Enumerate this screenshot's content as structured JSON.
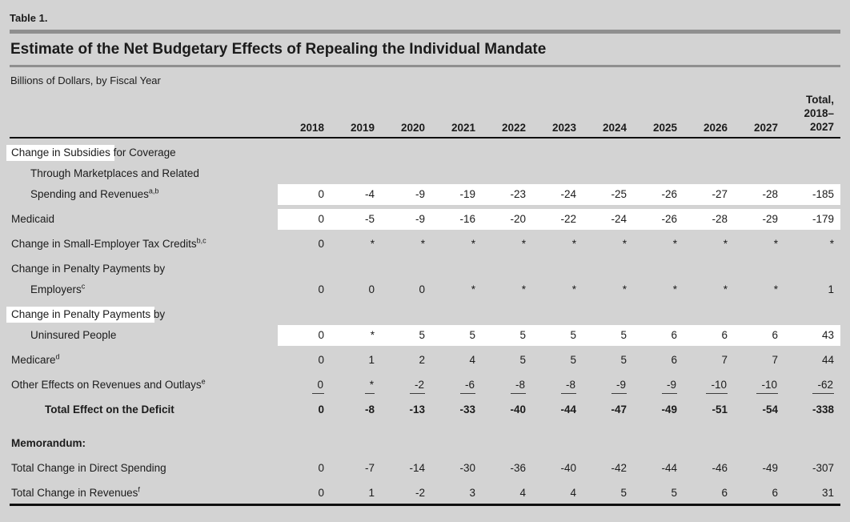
{
  "page": {
    "table_number": "Table 1.",
    "title": "Estimate of the Net Budgetary Effects of Repealing the Individual Mandate",
    "subtitle": "Billions of Dollars, by Fiscal Year"
  },
  "colors": {
    "background": "#d3d3d3",
    "text": "#1b1b1b",
    "rule_gray": "#8f8f8f",
    "rule_black": "#0f0f0f",
    "highlight": "#ffffff"
  },
  "table": {
    "year_headers": [
      "2018",
      "2019",
      "2020",
      "2021",
      "2022",
      "2023",
      "2024",
      "2025",
      "2026",
      "2027"
    ],
    "total_header_lines": [
      "Total,",
      "2018–",
      "2027"
    ],
    "rows": [
      {
        "lines": [
          {
            "indent": 0,
            "segments": [
              {
                "t": "Change in Subsidies",
                "hl": true
              },
              {
                "t": " for Coverage"
              }
            ]
          },
          {
            "indent": 1,
            "segments": [
              {
                "t": "Through Marketplaces and Related"
              }
            ]
          },
          {
            "indent": 1,
            "segments": [
              {
                "t": "Spending and Revenues"
              }
            ],
            "sup": "a,b"
          }
        ],
        "values": [
          "0",
          "-4",
          "-9",
          "-19",
          "-23",
          "-24",
          "-25",
          "-26",
          "-27",
          "-28",
          "-185"
        ],
        "values_hl": true
      },
      {
        "lines": [
          {
            "indent": 0,
            "segments": [
              {
                "t": "Medicaid"
              }
            ]
          }
        ],
        "values": [
          "0",
          "-5",
          "-9",
          "-16",
          "-20",
          "-22",
          "-24",
          "-26",
          "-28",
          "-29",
          "-179"
        ],
        "values_hl": true
      },
      {
        "lines": [
          {
            "indent": 0,
            "segments": [
              {
                "t": "Change in Small-Employer Tax Credits"
              }
            ],
            "sup": "b,c"
          }
        ],
        "values": [
          "0",
          "*",
          "*",
          "*",
          "*",
          "*",
          "*",
          "*",
          "*",
          "*",
          "*"
        ]
      },
      {
        "lines": [
          {
            "indent": 0,
            "segments": [
              {
                "t": "Change in Penalty Payments by"
              }
            ]
          },
          {
            "indent": 1,
            "segments": [
              {
                "t": "Employers"
              }
            ],
            "sup": "c"
          }
        ],
        "values": [
          "0",
          "0",
          "0",
          "*",
          "*",
          "*",
          "*",
          "*",
          "*",
          "*",
          "1"
        ]
      },
      {
        "lines": [
          {
            "indent": 0,
            "segments": [
              {
                "t": "Change in Penalty Payments",
                "hl": true
              },
              {
                "t": " by"
              }
            ]
          },
          {
            "indent": 1,
            "segments": [
              {
                "t": "Uninsured People"
              }
            ]
          }
        ],
        "values": [
          "0",
          "*",
          "5",
          "5",
          "5",
          "5",
          "5",
          "6",
          "6",
          "6",
          "43"
        ],
        "values_hl": true
      },
      {
        "lines": [
          {
            "indent": 0,
            "segments": [
              {
                "t": "Medicare"
              }
            ],
            "sup": "d"
          }
        ],
        "values": [
          "0",
          "1",
          "2",
          "4",
          "5",
          "5",
          "5",
          "6",
          "7",
          "7",
          "44"
        ]
      },
      {
        "lines": [
          {
            "indent": 0,
            "segments": [
              {
                "t": "Other Effects on Revenues and Outlays"
              }
            ],
            "sup": "e"
          }
        ],
        "values": [
          "0",
          "*",
          "-2",
          "-6",
          "-8",
          "-8",
          "-9",
          "-9",
          "-10",
          "-10",
          "-62"
        ],
        "underline": true
      },
      {
        "lines": [
          {
            "indent": 2,
            "segments": [
              {
                "t": "Total Effect on the Deficit"
              }
            ]
          }
        ],
        "values": [
          "0",
          "-8",
          "-13",
          "-33",
          "-40",
          "-44",
          "-47",
          "-49",
          "-51",
          "-54",
          "-338"
        ],
        "bold": true
      },
      {
        "lines": [
          {
            "indent": 0,
            "segments": [
              {
                "t": "Memorandum:"
              }
            ]
          }
        ],
        "values": [],
        "bold": true,
        "spacer": true
      },
      {
        "lines": [
          {
            "indent": 0,
            "segments": [
              {
                "t": "Total Change in Direct Spending"
              }
            ]
          }
        ],
        "values": [
          "0",
          "-7",
          "-14",
          "-30",
          "-36",
          "-40",
          "-42",
          "-44",
          "-46",
          "-49",
          "-307"
        ]
      },
      {
        "lines": [
          {
            "indent": 0,
            "segments": [
              {
                "t": "Total Change in Revenues"
              }
            ],
            "sup": "f"
          }
        ],
        "values": [
          "0",
          "1",
          "-2",
          "3",
          "4",
          "4",
          "5",
          "5",
          "6",
          "6",
          "31"
        ]
      }
    ]
  }
}
